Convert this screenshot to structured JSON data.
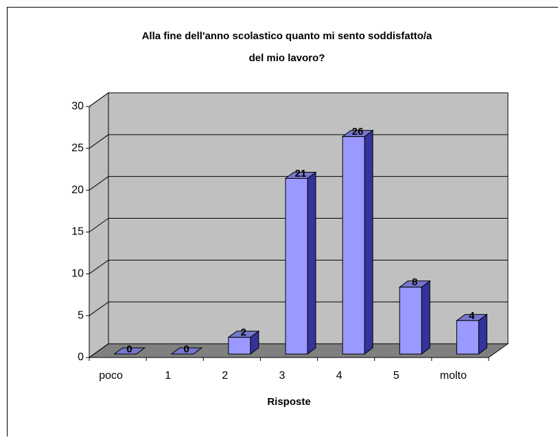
{
  "chart_data": {
    "type": "bar",
    "title": "Alla fine dell'anno scolastico quanto mi sento soddisfatto/a",
    "subtitle": "del mio lavoro?",
    "x_label": "Risposte",
    "categories": [
      "poco",
      "1",
      "2",
      "3",
      "4",
      "5",
      "molto"
    ],
    "values": [
      0,
      0,
      2,
      21,
      26,
      8,
      4
    ],
    "color": "#9999ff",
    "ylim": [
      0,
      30
    ],
    "yticks": [
      0,
      5,
      10,
      15,
      20,
      25,
      30
    ],
    "grid": true
  }
}
